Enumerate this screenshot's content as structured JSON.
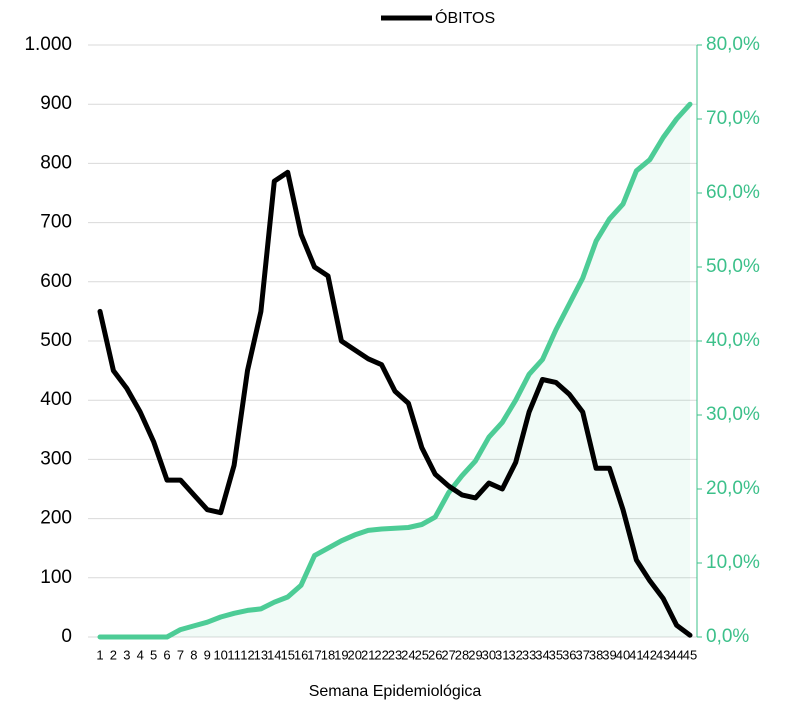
{
  "chart_data": {
    "type": "line",
    "x_label": "Semana Epidemiológica",
    "categories": [
      "1",
      "2",
      "3",
      "4",
      "5",
      "6",
      "7",
      "8",
      "9",
      "10",
      "11",
      "12",
      "13",
      "14",
      "15",
      "16",
      "17",
      "18",
      "19",
      "20",
      "21",
      "22",
      "23",
      "24",
      "25",
      "26",
      "27",
      "28",
      "29",
      "30",
      "31",
      "32",
      "33",
      "34",
      "35",
      "36",
      "37",
      "38",
      "39",
      "40",
      "41",
      "42",
      "43",
      "44",
      "45"
    ],
    "series": [
      {
        "name": "ÓBITOS",
        "color": "#000000",
        "values": [
          550,
          450,
          420,
          380,
          330,
          265,
          265,
          240,
          215,
          210,
          290,
          450,
          550,
          770,
          785,
          680,
          625,
          610,
          500,
          485,
          470,
          460,
          415,
          395,
          320,
          275,
          255,
          240,
          235,
          260,
          250,
          295,
          380,
          435,
          430,
          410,
          380,
          285,
          285,
          215,
          130,
          95,
          65,
          20,
          3
        ]
      },
      {
        "color": "#4dcc96",
        "axis": "y2",
        "area": true,
        "values": [
          0,
          0,
          0,
          0,
          0,
          0,
          1.0,
          1.5,
          2.0,
          2.7,
          3.2,
          3.6,
          3.8,
          4.7,
          5.4,
          7.0,
          11.0,
          12.0,
          13.0,
          13.8,
          14.4,
          14.6,
          14.7,
          14.8,
          15.2,
          16.2,
          19.5,
          21.8,
          23.8,
          27.0,
          29.0,
          32.0,
          35.5,
          37.5,
          41.5,
          45.0,
          48.5,
          53.5,
          56.5,
          58.5,
          63.0,
          64.5,
          67.5,
          70.0,
          72.0
        ]
      }
    ],
    "ylim": [
      0,
      1000
    ],
    "yticks": [
      0,
      100,
      200,
      300,
      400,
      500,
      600,
      700,
      800,
      900,
      {
        "value": 1000,
        "label": "1.000"
      }
    ],
    "y2lim": [
      0,
      80
    ],
    "y2ticks": [
      {
        "value": 0,
        "label": "0,0%"
      },
      {
        "value": 10,
        "label": "10,0%"
      },
      {
        "value": 20,
        "label": "20,0%"
      },
      {
        "value": 30,
        "label": "30,0%"
      },
      {
        "value": 40,
        "label": "40,0%"
      },
      {
        "value": 50,
        "label": "50,0%"
      },
      {
        "value": 60,
        "label": "60,0%"
      },
      {
        "value": 70,
        "label": "70,0%"
      },
      {
        "value": 80,
        "label": "80,0%"
      }
    ],
    "grid": true,
    "legend": "top"
  }
}
